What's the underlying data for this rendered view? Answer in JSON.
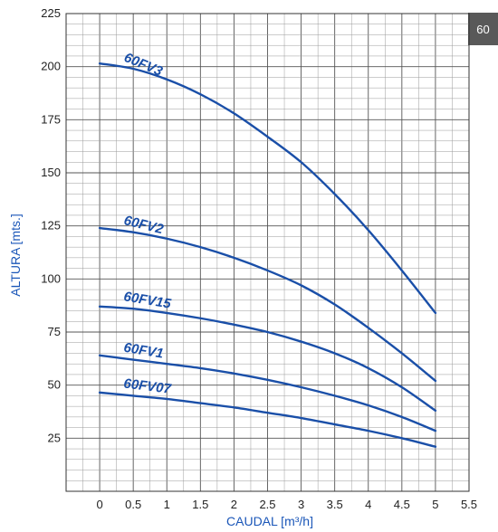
{
  "page_badge": "60",
  "colors": {
    "curve": "#1a4fa8",
    "axis_title": "#1a56b8",
    "grid_major": "#555555",
    "grid_minor": "#9a9a9a"
  },
  "chart_data": {
    "type": "line",
    "title": "",
    "xlabel": "CAUDAL [m³/h]",
    "ylabel": "ALTURA [mts.]",
    "xlim": [
      -0.5,
      5.5
    ],
    "ylim": [
      0,
      225
    ],
    "xticks": [
      "0",
      "0.5",
      "1",
      "1.5",
      "2",
      "2.5",
      "3",
      "3.5",
      "4",
      "4.5",
      "5",
      "5.5"
    ],
    "yticks": [
      "25",
      "50",
      "75",
      "100",
      "125",
      "150",
      "175",
      "200",
      "225"
    ],
    "grid": true,
    "series": [
      {
        "name": "60FV3",
        "x": [
          0,
          0.5,
          1,
          1.5,
          2,
          2.5,
          3,
          3.5,
          4,
          4.5,
          5
        ],
        "y": [
          201.5,
          199,
          194,
          187,
          178,
          167,
          155,
          140,
          123,
          104,
          84
        ]
      },
      {
        "name": "60FV2",
        "x": [
          0,
          0.5,
          1,
          1.5,
          2,
          2.5,
          3,
          3.5,
          4,
          4.5,
          5
        ],
        "y": [
          124,
          122,
          119,
          115,
          110,
          104,
          97,
          88,
          77,
          65,
          52
        ]
      },
      {
        "name": "60FV15",
        "x": [
          0,
          0.5,
          1,
          1.5,
          2,
          2.5,
          3,
          3.5,
          4,
          4.5,
          5
        ],
        "y": [
          87,
          86,
          84,
          81.5,
          78.5,
          75,
          70.5,
          65,
          58,
          49,
          38
        ]
      },
      {
        "name": "60FV1",
        "x": [
          0,
          0.5,
          1,
          1.5,
          2,
          2.5,
          3,
          3.5,
          4,
          4.5,
          5
        ],
        "y": [
          64,
          62,
          60,
          58,
          55.5,
          52.5,
          49,
          45,
          40.5,
          35,
          28.5
        ]
      },
      {
        "name": "60FV07",
        "x": [
          0,
          0.5,
          1,
          1.5,
          2,
          2.5,
          3,
          3.5,
          4,
          4.5,
          5
        ],
        "y": [
          46.5,
          45,
          43.5,
          41.5,
          39.5,
          37,
          34.5,
          31.5,
          28.5,
          25,
          21
        ]
      }
    ]
  }
}
